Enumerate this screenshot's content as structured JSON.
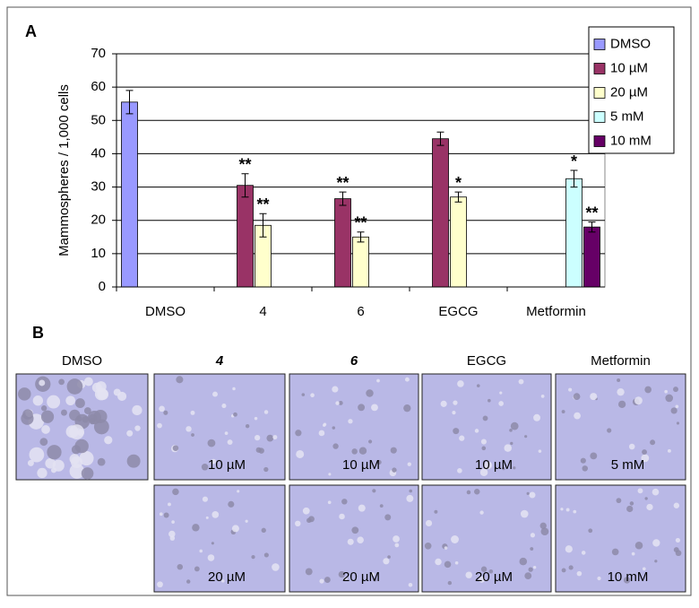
{
  "chart_data": {
    "type": "bar",
    "panel_label": "A",
    "ylabel": "Mammospheres / 1,000 cells",
    "categories": [
      "DMSO",
      "4",
      "6",
      "EGCG",
      "Metformin"
    ],
    "series": [
      {
        "name": "DMSO",
        "color": "#9999ff",
        "values": [
          55.5,
          null,
          null,
          null,
          null
        ],
        "errors": [
          3.5,
          null,
          null,
          null,
          null
        ],
        "significance": [
          null,
          null,
          null,
          null,
          null
        ]
      },
      {
        "name": "10 µM",
        "color": "#993366",
        "values": [
          null,
          30.5,
          26.5,
          44.5,
          null
        ],
        "errors": [
          null,
          3.5,
          2,
          2,
          null
        ],
        "significance": [
          null,
          "**",
          "**",
          null,
          null
        ]
      },
      {
        "name": "20 µM",
        "color": "#ffffcc",
        "values": [
          null,
          18.5,
          15,
          27,
          null
        ],
        "errors": [
          null,
          3.5,
          1.5,
          1.5,
          null
        ],
        "significance": [
          null,
          "**",
          "**",
          "*",
          null
        ]
      },
      {
        "name": "5 mM",
        "color": "#ccffff",
        "values": [
          null,
          null,
          null,
          null,
          32.5
        ],
        "errors": [
          null,
          null,
          null,
          null,
          2.5
        ],
        "significance": [
          null,
          null,
          null,
          null,
          "*"
        ]
      },
      {
        "name": "10 mM",
        "color": "#660066",
        "values": [
          null,
          null,
          null,
          null,
          18
        ],
        "errors": [
          null,
          null,
          null,
          null,
          1.5
        ],
        "significance": [
          null,
          null,
          null,
          null,
          "**"
        ]
      }
    ],
    "ylim": [
      0,
      70
    ],
    "yticks": [
      0,
      10,
      20,
      30,
      40,
      50,
      60,
      70
    ],
    "grid": true,
    "legend": "top-right"
  },
  "panel_b": {
    "label": "B",
    "columns": [
      {
        "title": "DMSO"
      },
      {
        "title": "4",
        "captions": [
          "10 µM",
          "20 µM"
        ]
      },
      {
        "title": "6",
        "captions": [
          "10 µM",
          "20 µM"
        ]
      },
      {
        "title": "EGCG",
        "captions": [
          "10 µM",
          "20 µM"
        ]
      },
      {
        "title": "Metformin",
        "captions": [
          "5 mM",
          "10 mM"
        ]
      }
    ]
  }
}
